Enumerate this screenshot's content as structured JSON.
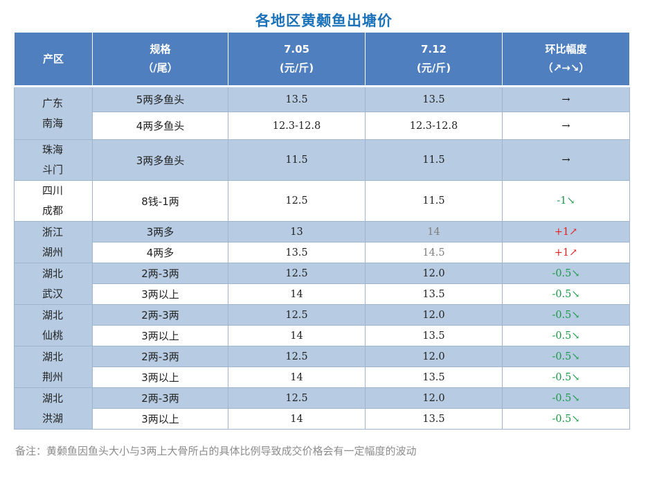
{
  "title": "各地区黄颡鱼出塘价",
  "header": {
    "region": "产区",
    "spec_line1": "规格",
    "spec_line2": "（/尾）",
    "d1_line1": "7.05",
    "d1_line2": "(元/斤)",
    "d2_line1": "7.12",
    "d2_line2": "(元/斤)",
    "chg_line1": "环比幅度",
    "chg_line2": "（↗→↘）"
  },
  "rows": [
    {
      "region": [
        "广东",
        "南海"
      ],
      "span": 2,
      "bg": "blue",
      "spec": "5两多鱼头",
      "p1": "13.5",
      "p2": "13.5",
      "change": "→",
      "dir": "flat",
      "grey": false
    },
    {
      "bg": "white",
      "spec": "4两多鱼头",
      "p1": "12.3-12.8",
      "p2": "12.3-12.8",
      "change": "→",
      "dir": "flat",
      "grey": false
    },
    {
      "region": [
        "珠海",
        "斗门"
      ],
      "span": 1,
      "bg": "blue",
      "spec": "3两多鱼头",
      "p1": "11.5",
      "p2": "11.5",
      "change": "→",
      "dir": "flat",
      "grey": false
    },
    {
      "region": [
        "四川",
        "成都"
      ],
      "span": 1,
      "bg": "white",
      "spec": "8钱-1两",
      "p1": "12.5",
      "p2": "11.5",
      "change": "-1↘",
      "dir": "down",
      "grey": false
    },
    {
      "region": [
        "浙江",
        "湖州"
      ],
      "span": 2,
      "bg": "blue",
      "spec": "3两多",
      "p1": "13",
      "p2": "14",
      "change": "+1↗",
      "dir": "up",
      "grey": true
    },
    {
      "bg": "white",
      "spec": "4两多",
      "p1": "13.5",
      "p2": "14.5",
      "change": "+1↗",
      "dir": "up",
      "grey": true
    },
    {
      "region": [
        "湖北",
        "武汉"
      ],
      "span": 2,
      "bg": "blue",
      "spec": "2两-3两",
      "p1": "12.5",
      "p2": "12.0",
      "change": "-0.5↘",
      "dir": "down",
      "grey": false
    },
    {
      "bg": "white",
      "spec": "3两以上",
      "p1": "14",
      "p2": "13.5",
      "change": "-0.5↘",
      "dir": "down",
      "grey": false
    },
    {
      "region": [
        "湖北",
        "仙桃"
      ],
      "span": 2,
      "bg": "blue",
      "spec": "2两-3两",
      "p1": "12.5",
      "p2": "12.0",
      "change": "-0.5↘",
      "dir": "down",
      "grey": false
    },
    {
      "bg": "white",
      "spec": "3两以上",
      "p1": "14",
      "p2": "13.5",
      "change": "-0.5↘",
      "dir": "down",
      "grey": false
    },
    {
      "region": [
        "湖北",
        "荆州"
      ],
      "span": 2,
      "bg": "blue",
      "spec": "2两-3两",
      "p1": "12.5",
      "p2": "12.0",
      "change": "-0.5↘",
      "dir": "down",
      "grey": false
    },
    {
      "bg": "white",
      "spec": "3两以上",
      "p1": "14",
      "p2": "13.5",
      "change": "-0.5↘",
      "dir": "down",
      "grey": false
    },
    {
      "region": [
        "湖北",
        "洪湖"
      ],
      "span": 2,
      "bg": "blue",
      "spec": "2两-3两",
      "p1": "12.5",
      "p2": "12.0",
      "change": "-0.5↘",
      "dir": "down",
      "grey": false
    },
    {
      "bg": "white",
      "spec": "3两以上",
      "p1": "14",
      "p2": "13.5",
      "change": "-0.5↘",
      "dir": "down",
      "grey": false
    }
  ],
  "note": "备注：黄颡鱼因鱼头大小与3两上大骨所占的具体比例导致成交价格会有一定幅度的波动"
}
